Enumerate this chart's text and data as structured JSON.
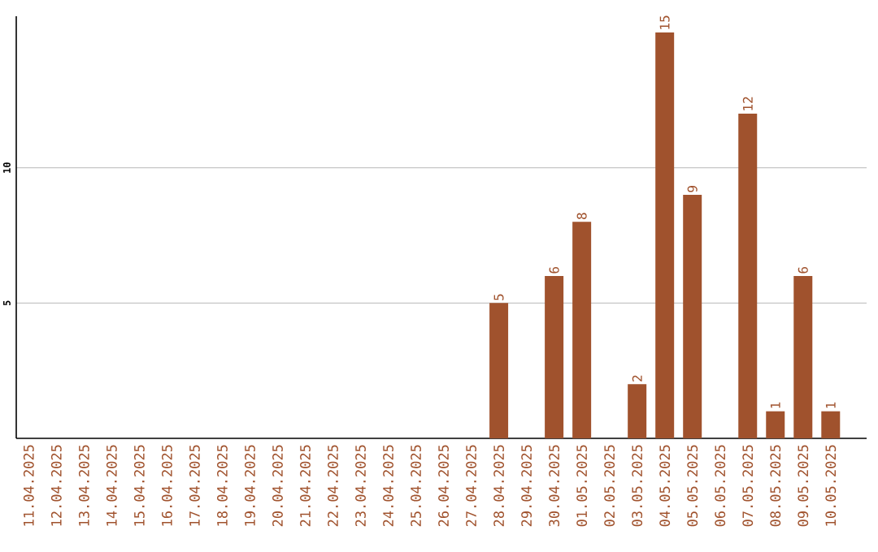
{
  "chart_data": {
    "type": "bar",
    "color": "#a0522d",
    "categories": [
      "11.04.2025",
      "12.04.2025",
      "13.04.2025",
      "14.04.2025",
      "15.04.2025",
      "16.04.2025",
      "17.04.2025",
      "18.04.2025",
      "19.04.2025",
      "20.04.2025",
      "21.04.2025",
      "22.04.2025",
      "23.04.2025",
      "24.04.2025",
      "25.04.2025",
      "26.04.2025",
      "27.04.2025",
      "28.04.2025",
      "29.04.2025",
      "30.04.2025",
      "01.05.2025",
      "02.05.2025",
      "03.05.2025",
      "04.05.2025",
      "05.05.2025",
      "06.05.2025",
      "07.05.2025",
      "08.05.2025",
      "09.05.2025",
      "10.05.2025"
    ],
    "values": [
      0,
      0,
      0,
      0,
      0,
      0,
      0,
      0,
      0,
      0,
      0,
      0,
      0,
      0,
      0,
      0,
      0,
      5,
      0,
      6,
      8,
      0,
      2,
      15,
      9,
      0,
      12,
      1,
      6,
      1
    ],
    "value_labels": [
      null,
      null,
      null,
      null,
      null,
      null,
      null,
      null,
      null,
      null,
      null,
      null,
      null,
      null,
      null,
      null,
      null,
      "5",
      null,
      "6",
      "8",
      null,
      "2",
      "15",
      "9",
      null,
      "12",
      "1",
      "6",
      "1"
    ],
    "ylim": [
      0,
      15.6
    ],
    "yticks": [
      5,
      10
    ],
    "grid": "y"
  }
}
